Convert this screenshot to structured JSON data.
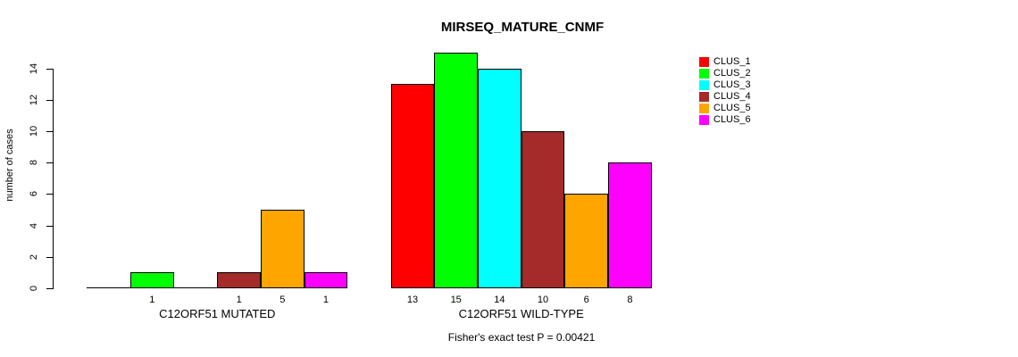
{
  "chart_data": {
    "type": "bar",
    "title": "MIRSEQ_MATURE_CNMF",
    "ylabel": "number of cases",
    "xlabel": "",
    "footnote": "Fisher's exact test P = 0.00421",
    "ylim": [
      0,
      15
    ],
    "yticks": [
      0,
      2,
      4,
      6,
      8,
      10,
      12,
      14
    ],
    "grid": false,
    "legend_position": "right",
    "series_colors": [
      "#FF0000",
      "#00FF00",
      "#00FFFF",
      "#A52A2A",
      "#FFA500",
      "#FF00FF"
    ],
    "legend": [
      "CLUS_1",
      "CLUS_2",
      "CLUS_3",
      "CLUS_4",
      "CLUS_5",
      "CLUS_6"
    ],
    "groups": [
      {
        "label": "C12ORF51 MUTATED",
        "values": [
          0,
          1,
          0,
          1,
          5,
          1
        ],
        "bar_labels": [
          "",
          "1",
          "",
          "1",
          "5",
          "1"
        ]
      },
      {
        "label": "C12ORF51 WILD-TYPE",
        "values": [
          13,
          15,
          14,
          10,
          6,
          8
        ],
        "bar_labels": [
          "13",
          "15",
          "14",
          "10",
          "6",
          "8"
        ]
      }
    ]
  }
}
